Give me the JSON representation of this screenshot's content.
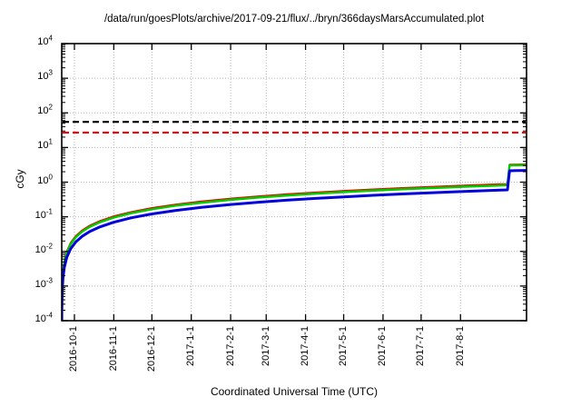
{
  "title": "/data/run/goesPlots/archive/2017-09-21/flux/../bryn/366daysMarsAccumulated.plot",
  "xlabel": "Coordinated Universal Time (UTC)",
  "ylabel": "cGy",
  "chart_data": {
    "type": "line",
    "y_scale": "log10",
    "ylim": [
      0.0001,
      10000
    ],
    "y_tick_exponents": [
      4,
      3,
      2,
      1,
      0,
      -1,
      -2,
      -3,
      -4
    ],
    "x_start_date": "2016-09-21",
    "xlim_days": [
      0,
      366
    ],
    "x_ticks": [
      {
        "label": "2016-10-1",
        "day": 10
      },
      {
        "label": "2016-11-1",
        "day": 41
      },
      {
        "label": "2016-12-1",
        "day": 71
      },
      {
        "label": "2017-1-1",
        "day": 102
      },
      {
        "label": "2017-2-1",
        "day": 133
      },
      {
        "label": "2017-3-1",
        "day": 161
      },
      {
        "label": "2017-4-1",
        "day": 192
      },
      {
        "label": "2017-5-1",
        "day": 222
      },
      {
        "label": "2017-6-1",
        "day": 253
      },
      {
        "label": "2017-7-1",
        "day": 283
      },
      {
        "label": "2017-8-1",
        "day": 314
      }
    ],
    "grid": true,
    "legend": "none",
    "thresholds": [
      {
        "name": "upper-limit-line",
        "value": 55,
        "color": "#000000",
        "style": "dashed"
      },
      {
        "name": "lower-limit-line",
        "value": 27,
        "color": "#ff0000",
        "style": "dashed"
      }
    ],
    "series": [
      {
        "name": "red-line",
        "color": "#ee0000",
        "width": 2,
        "points": [
          [
            0.05,
            0.000126
          ],
          [
            0.1,
            0.000252
          ],
          [
            0.2,
            0.000503
          ],
          [
            0.5,
            0.00126
          ],
          [
            1,
            0.00252
          ],
          [
            2,
            0.00503
          ],
          [
            4,
            0.0101
          ],
          [
            7,
            0.0176
          ],
          [
            11,
            0.0277
          ],
          [
            16,
            0.0403
          ],
          [
            22,
            0.0554
          ],
          [
            30,
            0.0755
          ],
          [
            41,
            0.103
          ],
          [
            55,
            0.138
          ],
          [
            71,
            0.179
          ],
          [
            90,
            0.227
          ],
          [
            110,
            0.277
          ],
          [
            133,
            0.335
          ],
          [
            155,
            0.39
          ],
          [
            178,
            0.448
          ],
          [
            200,
            0.503
          ],
          [
            222,
            0.559
          ],
          [
            245,
            0.617
          ],
          [
            268,
            0.674
          ],
          [
            290,
            0.73
          ],
          [
            314,
            0.79
          ],
          [
            333,
            0.838
          ],
          [
            345,
            0.868
          ],
          [
            351,
            0.883
          ],
          [
            351.9,
            1.8
          ],
          [
            352.6,
            3.2
          ],
          [
            358,
            3.23
          ],
          [
            366,
            3.27
          ]
        ]
      },
      {
        "name": "green-line",
        "color": "#00cc00",
        "width": 2.5,
        "points": [
          [
            0.05,
            0.000117
          ],
          [
            0.1,
            0.000233
          ],
          [
            0.2,
            0.000466
          ],
          [
            0.5,
            0.001165
          ],
          [
            1,
            0.00233
          ],
          [
            2,
            0.00466
          ],
          [
            4,
            0.00932
          ],
          [
            7,
            0.0163
          ],
          [
            11,
            0.0256
          ],
          [
            16,
            0.0373
          ],
          [
            22,
            0.0513
          ],
          [
            30,
            0.0699
          ],
          [
            41,
            0.0955
          ],
          [
            55,
            0.128
          ],
          [
            71,
            0.165
          ],
          [
            90,
            0.21
          ],
          [
            110,
            0.256
          ],
          [
            133,
            0.31
          ],
          [
            155,
            0.361
          ],
          [
            178,
            0.415
          ],
          [
            200,
            0.466
          ],
          [
            222,
            0.517
          ],
          [
            245,
            0.571
          ],
          [
            268,
            0.624
          ],
          [
            290,
            0.676
          ],
          [
            314,
            0.732
          ],
          [
            333,
            0.776
          ],
          [
            345,
            0.804
          ],
          [
            351,
            0.818
          ],
          [
            351.9,
            1.7
          ],
          [
            352.6,
            3.05
          ],
          [
            358,
            3.08
          ],
          [
            366,
            3.12
          ]
        ]
      },
      {
        "name": "blue-line",
        "color": "#0000dd",
        "width": 3,
        "points": [
          [
            0.05,
            8.55e-05
          ],
          [
            0.1,
            0.00017
          ],
          [
            0.2,
            0.00034
          ],
          [
            0.5,
            0.00085
          ],
          [
            1,
            0.0017
          ],
          [
            2,
            0.0034
          ],
          [
            4,
            0.0068
          ],
          [
            7,
            0.0119
          ],
          [
            11,
            0.0187
          ],
          [
            16,
            0.0272
          ],
          [
            22,
            0.0374
          ],
          [
            30,
            0.051
          ],
          [
            41,
            0.0697
          ],
          [
            55,
            0.0935
          ],
          [
            71,
            0.121
          ],
          [
            90,
            0.153
          ],
          [
            110,
            0.187
          ],
          [
            133,
            0.226
          ],
          [
            155,
            0.264
          ],
          [
            178,
            0.303
          ],
          [
            200,
            0.34
          ],
          [
            222,
            0.377
          ],
          [
            245,
            0.417
          ],
          [
            268,
            0.456
          ],
          [
            290,
            0.493
          ],
          [
            314,
            0.534
          ],
          [
            333,
            0.566
          ],
          [
            345,
            0.587
          ],
          [
            351,
            0.597
          ],
          [
            351.9,
            1.25
          ],
          [
            352.6,
            2.13
          ],
          [
            358,
            2.15
          ],
          [
            366,
            2.18
          ]
        ]
      }
    ]
  }
}
